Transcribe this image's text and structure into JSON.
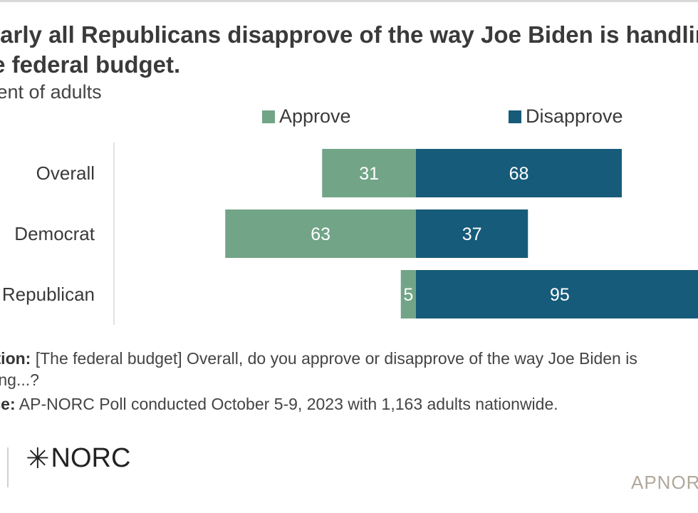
{
  "header": {
    "title": "Nearly all Republicans disapprove of the way Joe Biden is handling the federal budget.",
    "subtitle": "Percent of adults"
  },
  "notes": {
    "question_label": "Question:",
    "question_line1": "[The federal budget] Overall, do you approve or disapprove of the way Joe Biden is",
    "question_line2": "handling...?",
    "source_label": "Source:",
    "source_text": "AP-NORC Poll conducted October 5-9, 2023 with 1,163 adults nationwide."
  },
  "branding": {
    "logo_text": "NORC",
    "url": "APNORC.ORG"
  },
  "colors": {
    "approve": "#72a488",
    "disapprove": "#175b7a"
  },
  "chart_data": {
    "type": "bar",
    "orientation": "horizontal-diverging",
    "title": "Nearly all Republicans disapprove of the way Joe Biden is handling the federal budget.",
    "subtitle": "Percent of adults",
    "categories": [
      "Overall",
      "Democrat",
      "Republican"
    ],
    "series": [
      {
        "name": "Approve",
        "values": [
          31,
          63,
          5
        ]
      },
      {
        "name": "Disapprove",
        "values": [
          68,
          37,
          95
        ]
      }
    ],
    "legend_position": "top",
    "grid": false
  }
}
